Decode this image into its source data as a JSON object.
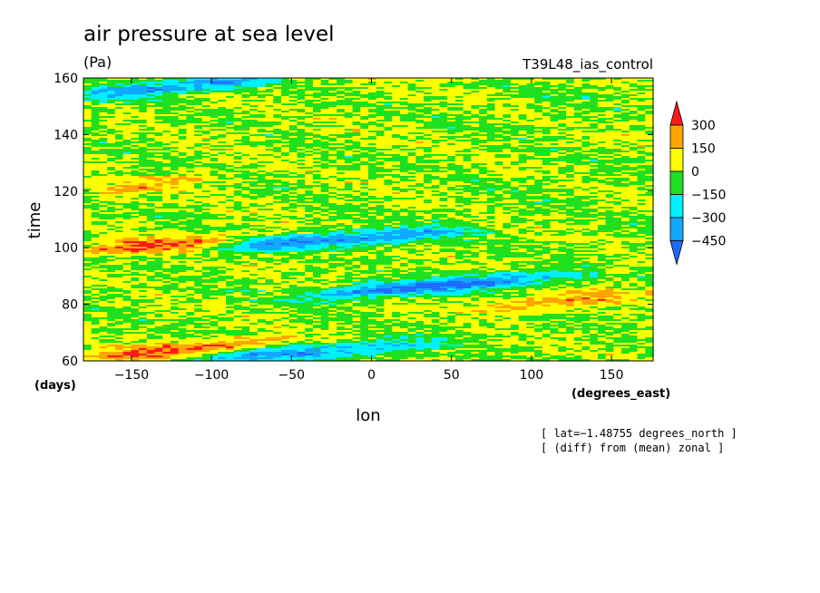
{
  "chart_data": {
    "type": "heatmap",
    "title": "air pressure at sea level",
    "units": "(Pa)",
    "experiment": "T39L48_ias_control",
    "xlabel": "lon",
    "x_units": "(degrees_east)",
    "ylabel": "time",
    "y_units": "(days)",
    "xlim": [
      -180,
      176
    ],
    "ylim": [
      60,
      160
    ],
    "x_ticks": [
      -150,
      -100,
      -50,
      0,
      50,
      100,
      150
    ],
    "x_tick_labels": [
      "−150",
      "−100",
      "−50",
      "0",
      "50",
      "100",
      "150"
    ],
    "y_ticks": [
      60,
      80,
      100,
      120,
      140,
      160
    ],
    "y_tick_labels": [
      "60",
      "80",
      "100",
      "120",
      "140",
      "160"
    ],
    "colorbar": {
      "levels": [
        -450,
        -300,
        -150,
        0,
        150,
        300
      ],
      "level_labels": [
        "−450",
        "−300",
        "−150",
        "0",
        "150",
        "300"
      ],
      "colors": [
        "#1f6bff",
        "#11a8ff",
        "#00f0ff",
        "#1fe01f",
        "#ffff00",
        "#ffa500",
        "#ff1a1a"
      ],
      "extend": "both"
    },
    "notes": [
      "[ lat=−1.48755 degrees_north ]",
      "[ (diff) from (mean) zonal ]"
    ],
    "features": [
      {
        "kind": "high",
        "lon": [
          -180,
          -80
        ],
        "time": [
          99,
          103
        ],
        "value": 330
      },
      {
        "kind": "high",
        "lon": [
          -180,
          -60
        ],
        "time": [
          61,
          67
        ],
        "value": 320
      },
      {
        "kind": "high",
        "lon": [
          60,
          176
        ],
        "time": [
          78,
          84
        ],
        "value": 200
      },
      {
        "kind": "high",
        "lon": [
          -180,
          -100
        ],
        "time": [
          118,
          126
        ],
        "value": 180
      },
      {
        "kind": "low",
        "lon": [
          -40,
          120
        ],
        "time": [
          83,
          90
        ],
        "value": -480
      },
      {
        "kind": "low",
        "lon": [
          -100,
          60
        ],
        "time": [
          100,
          106
        ],
        "value": -420
      },
      {
        "kind": "low",
        "lon": [
          -180,
          -60
        ],
        "time": [
          154,
          160
        ],
        "value": -400
      },
      {
        "kind": "low",
        "lon": [
          -120,
          40
        ],
        "time": [
          60,
          66
        ],
        "value": -350
      }
    ]
  }
}
